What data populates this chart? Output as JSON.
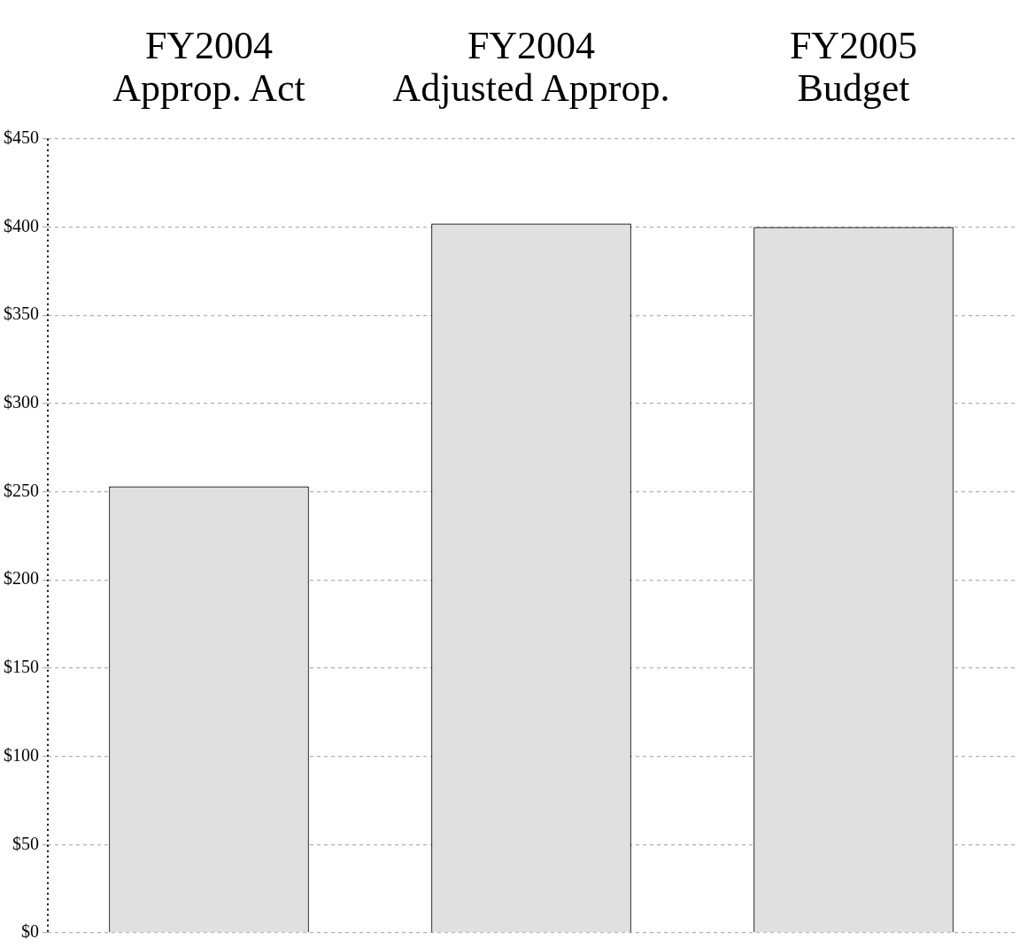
{
  "chart_data": {
    "type": "bar",
    "categories": [
      "FY2004\nApprop. Act",
      "FY2004\nAdjusted Approp.",
      "FY2005\nBudget"
    ],
    "values": [
      253,
      402,
      400
    ],
    "color": "#e0e0e0",
    "ylim": [
      0,
      450
    ],
    "yticks": [
      {
        "value": 0,
        "label": "$0"
      },
      {
        "value": 50,
        "label": "$50"
      },
      {
        "value": 100,
        "label": "$100"
      },
      {
        "value": 150,
        "label": "$150"
      },
      {
        "value": 200,
        "label": "$200"
      },
      {
        "value": 250,
        "label": "$250"
      },
      {
        "value": 300,
        "label": "$300"
      },
      {
        "value": 350,
        "label": "$350"
      },
      {
        "value": 400,
        "label": "$400"
      },
      {
        "value": 450,
        "label": "$450"
      }
    ],
    "grid": "y",
    "legend": false
  }
}
